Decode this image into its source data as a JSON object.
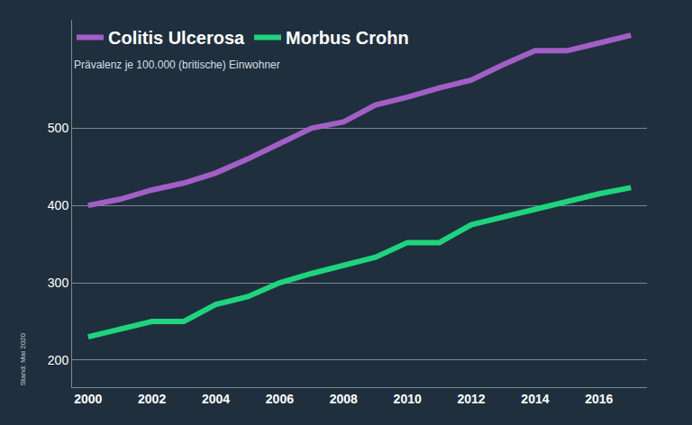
{
  "chart_data": {
    "type": "line",
    "subtitle": "Prävalenz je 100.000 (britische) Einwohner",
    "annotations": [
      "Stand: Mai 2020"
    ],
    "x": [
      2000,
      2001,
      2002,
      2003,
      2004,
      2005,
      2006,
      2007,
      2008,
      2009,
      2010,
      2011,
      2012,
      2013,
      2014,
      2015,
      2016,
      2017
    ],
    "series": [
      {
        "name": "Colitis Ulcerosa",
        "color": "#a25fc6",
        "values": [
          400,
          408,
          420,
          429,
          442,
          460,
          480,
          500,
          508,
          530,
          540,
          552,
          562,
          582,
          600,
          600,
          610,
          620
        ]
      },
      {
        "name": "Morbus Crohn",
        "color": "#1ed47c",
        "values": [
          230,
          240,
          250,
          250,
          272,
          282,
          300,
          312,
          322,
          333,
          352,
          352,
          375,
          385,
          395,
          404,
          415,
          423
        ]
      }
    ],
    "xlim": [
      1999.5,
      2017.5
    ],
    "xticks": [
      2000,
      2002,
      2004,
      2006,
      2008,
      2010,
      2012,
      2014,
      2016
    ],
    "ylim": [
      165,
      640
    ],
    "yticks": [
      200,
      300,
      400,
      500
    ],
    "grid": true,
    "legend": "top-left"
  }
}
